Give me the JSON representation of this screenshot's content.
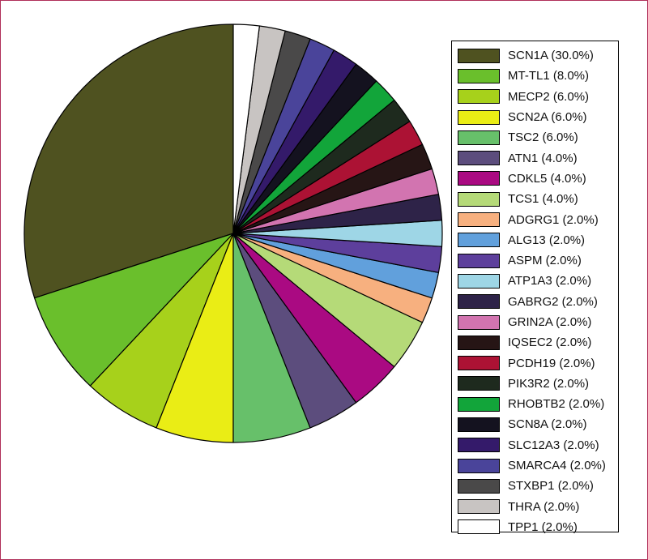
{
  "chart_data": {
    "type": "pie",
    "title": "",
    "legend_position": "right",
    "start": "top, counter-clockwise",
    "slices": [
      {
        "label": "SCN1A",
        "value": 30.0,
        "legend": "SCN1A (30.0%)",
        "color": "#4f5220"
      },
      {
        "label": "MT-TL1",
        "value": 8.0,
        "legend": "MT-TL1 (8.0%)",
        "color": "#6abf2c"
      },
      {
        "label": "MECP2",
        "value": 6.0,
        "legend": "MECP2 (6.0%)",
        "color": "#a7d11b"
      },
      {
        "label": "SCN2A",
        "value": 6.0,
        "legend": "SCN2A (6.0%)",
        "color": "#eaed15"
      },
      {
        "label": "TSC2",
        "value": 6.0,
        "legend": "TSC2 (6.0%)",
        "color": "#67c06a"
      },
      {
        "label": "ATN1",
        "value": 4.0,
        "legend": "ATN1 (4.0%)",
        "color": "#5c4d7d"
      },
      {
        "label": "CDKL5",
        "value": 4.0,
        "legend": "CDKL5 (4.0%)",
        "color": "#aa0a82"
      },
      {
        "label": "TCS1",
        "value": 4.0,
        "legend": "TCS1 (4.0%)",
        "color": "#b5da78"
      },
      {
        "label": "ADGRG1",
        "value": 2.0,
        "legend": "ADGRG1 (2.0%)",
        "color": "#f7b07f"
      },
      {
        "label": "ALG13",
        "value": 2.0,
        "legend": "ALG13 (2.0%)",
        "color": "#61a0dc"
      },
      {
        "label": "ASPM",
        "value": 2.0,
        "legend": "ASPM (2.0%)",
        "color": "#5d3f9c"
      },
      {
        "label": "ATP1A3",
        "value": 2.0,
        "legend": "ATP1A3 (2.0%)",
        "color": "#9ed6e6"
      },
      {
        "label": "GABRG2",
        "value": 2.0,
        "legend": "GABRG2 (2.0%)",
        "color": "#2e2348"
      },
      {
        "label": "GRIN2A",
        "value": 2.0,
        "legend": "GRIN2A (2.0%)",
        "color": "#d274b0"
      },
      {
        "label": "IQSEC2",
        "value": 2.0,
        "legend": "IQSEC2 (2.0%)",
        "color": "#261515"
      },
      {
        "label": "PCDH19",
        "value": 2.0,
        "legend": "PCDH19 (2.0%)",
        "color": "#ac1234"
      },
      {
        "label": "PIK3R2",
        "value": 2.0,
        "legend": "PIK3R2 (2.0%)",
        "color": "#1e2a1e"
      },
      {
        "label": "RHOBTB2",
        "value": 2.0,
        "legend": "RHOBTB2 (2.0%)",
        "color": "#12a53a"
      },
      {
        "label": "SCN8A",
        "value": 2.0,
        "legend": "SCN8A (2.0%)",
        "color": "#14121f"
      },
      {
        "label": "SLC12A3",
        "value": 2.0,
        "legend": "SLC12A3 (2.0%)",
        "color": "#341a6a"
      },
      {
        "label": "SMARCA4",
        "value": 2.0,
        "legend": "SMARCA4 (2.0%)",
        "color": "#4a449a"
      },
      {
        "label": "STXBP1",
        "value": 2.0,
        "legend": "STXBP1 (2.0%)",
        "color": "#4a4949"
      },
      {
        "label": "THRA",
        "value": 2.0,
        "legend": "THRA (2.0%)",
        "color": "#c8c4c2"
      },
      {
        "label": "TPP1",
        "value": 2.0,
        "legend": "TPP1 (2.0%)",
        "color": "#ffffff"
      }
    ]
  }
}
